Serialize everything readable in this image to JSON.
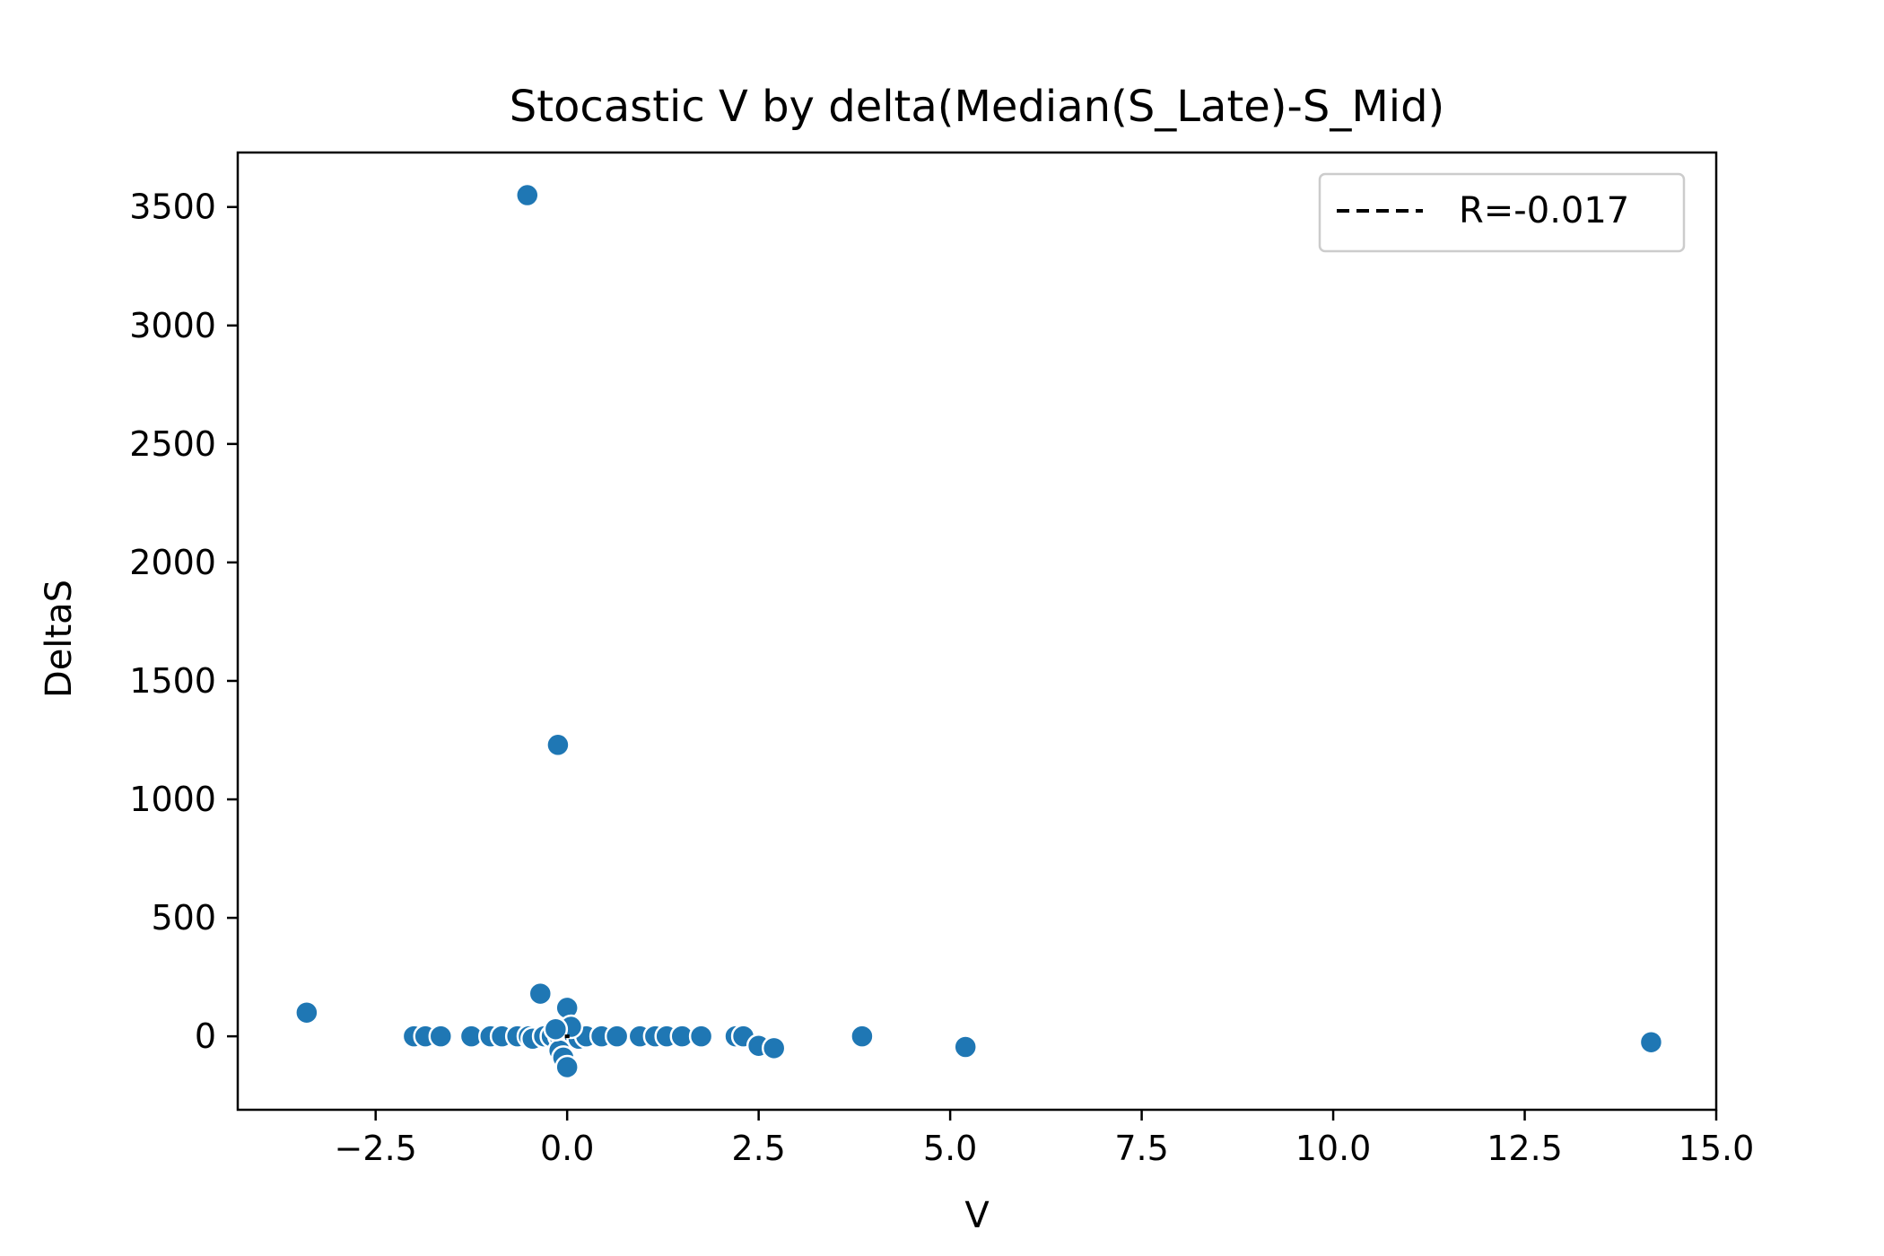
{
  "chart_data": {
    "type": "scatter",
    "title": "Stocastic V by delta(Median(S_Late)-S_Mid)",
    "xlabel": "V",
    "ylabel": "DeltaS",
    "xlim": [
      -4.3,
      15.0
    ],
    "ylim": [
      -310,
      3730
    ],
    "x_ticks": [
      -2.5,
      0.0,
      2.5,
      5.0,
      7.5,
      10.0,
      12.5,
      15.0
    ],
    "x_tick_labels": [
      "−2.5",
      "0.0",
      "2.5",
      "5.0",
      "7.5",
      "10.0",
      "12.5",
      "15.0"
    ],
    "y_ticks": [
      0,
      500,
      1000,
      1500,
      2000,
      2500,
      3000,
      3500
    ],
    "y_tick_labels": [
      "0",
      "500",
      "1000",
      "1500",
      "2000",
      "2500",
      "3000",
      "3500"
    ],
    "grid": false,
    "legend": {
      "position": "top-right",
      "entries": [
        {
          "label": "R=-0.017",
          "style": "dashed-line",
          "color": "#000000"
        }
      ]
    },
    "regression_line": {
      "slope": 0.0,
      "intercept": 0.0
    },
    "series": [
      {
        "marker_color": "#1f77b4",
        "marker_edge": "#ffffff",
        "points": [
          {
            "x": -0.52,
            "y": 3550
          },
          {
            "x": -0.12,
            "y": 1230
          },
          {
            "x": -3.4,
            "y": 100
          },
          {
            "x": -0.35,
            "y": 180
          },
          {
            "x": 0.0,
            "y": 120
          },
          {
            "x": -2.0,
            "y": 0
          },
          {
            "x": -1.85,
            "y": 0
          },
          {
            "x": -1.65,
            "y": 0
          },
          {
            "x": -1.25,
            "y": 0
          },
          {
            "x": -1.0,
            "y": 0
          },
          {
            "x": -0.85,
            "y": 0
          },
          {
            "x": -0.65,
            "y": 0
          },
          {
            "x": -0.5,
            "y": 0
          },
          {
            "x": -0.45,
            "y": -10
          },
          {
            "x": -0.3,
            "y": 0
          },
          {
            "x": -0.2,
            "y": 0
          },
          {
            "x": -0.1,
            "y": 0
          },
          {
            "x": -0.05,
            "y": 0
          },
          {
            "x": 0.0,
            "y": 0
          },
          {
            "x": 0.05,
            "y": 0
          },
          {
            "x": 0.1,
            "y": 0
          },
          {
            "x": 0.15,
            "y": -10
          },
          {
            "x": 0.25,
            "y": 0
          },
          {
            "x": 0.45,
            "y": 0
          },
          {
            "x": 0.65,
            "y": 0
          },
          {
            "x": 0.95,
            "y": 0
          },
          {
            "x": 1.15,
            "y": 0
          },
          {
            "x": 1.3,
            "y": 0
          },
          {
            "x": 1.5,
            "y": 0
          },
          {
            "x": 1.75,
            "y": 0
          },
          {
            "x": 2.2,
            "y": 0
          },
          {
            "x": 2.3,
            "y": 0
          },
          {
            "x": 2.5,
            "y": -40
          },
          {
            "x": 2.7,
            "y": -50
          },
          {
            "x": -0.1,
            "y": -60
          },
          {
            "x": -0.05,
            "y": -90
          },
          {
            "x": 0.0,
            "y": -130
          },
          {
            "x": 0.05,
            "y": 40
          },
          {
            "x": -0.15,
            "y": 30
          },
          {
            "x": 3.85,
            "y": 0
          },
          {
            "x": 5.2,
            "y": -45
          },
          {
            "x": 14.15,
            "y": -25
          }
        ]
      }
    ]
  }
}
